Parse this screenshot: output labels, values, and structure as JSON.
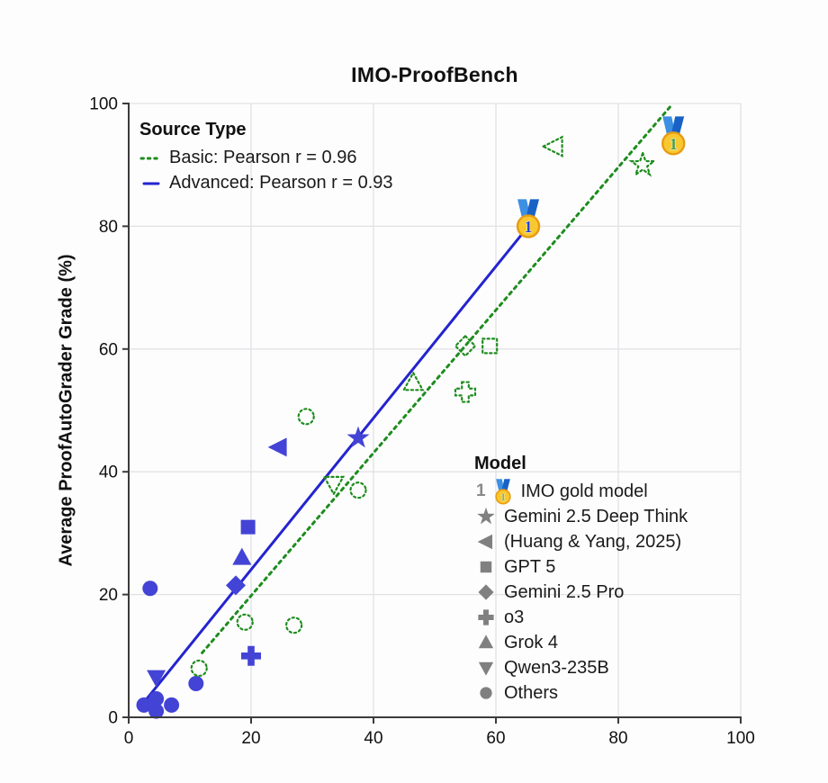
{
  "title": "IMO-ProofBench",
  "y_axis_label": "Average ProofAutoGrader Grade (%)",
  "colors": {
    "advanced": "#4343d6",
    "advanced_line": "#2424cf",
    "basic": "#1e8c1e",
    "legend_gray": "#808080",
    "grid": "#e2e2e6",
    "axis": "#3c3c3c",
    "text": "#111111",
    "medal_gold": "#f9c830",
    "medal_gold_border": "#e89b12",
    "medal_ribbon_light": "#3d8fe3",
    "medal_ribbon_dark": "#1862c6"
  },
  "source_type_legend": {
    "title": "Source Type",
    "items": [
      {
        "name": "Basic",
        "line_style": "dotted",
        "label": "Basic: Pearson r = 0.96"
      },
      {
        "name": "Advanced",
        "line_style": "solid",
        "label": "Advanced: Pearson r = 0.93"
      }
    ]
  },
  "model_legend": {
    "title": "Model",
    "items": [
      {
        "marker": "medal",
        "prefix": "1",
        "label": "IMO gold model"
      },
      {
        "marker": "star",
        "label": "Gemini 2.5 Deep Think"
      },
      {
        "marker": "triangle-left",
        "label": "(Huang & Yang, 2025)"
      },
      {
        "marker": "square",
        "label": "GPT 5"
      },
      {
        "marker": "diamond",
        "label": "Gemini 2.5 Pro"
      },
      {
        "marker": "plus",
        "label": "o3"
      },
      {
        "marker": "triangle-up",
        "label": "Grok 4"
      },
      {
        "marker": "triangle-down",
        "label": "Qwen3-235B"
      },
      {
        "marker": "circle",
        "label": "Others"
      }
    ]
  },
  "chart_data": {
    "type": "scatter",
    "title": "IMO-ProofBench",
    "xlabel": "",
    "ylabel": "Average ProofAutoGrader Grade (%)",
    "xlim": [
      0,
      100
    ],
    "ylim": [
      0,
      100
    ],
    "x_ticks": [
      0,
      20,
      40,
      60,
      80,
      100
    ],
    "y_ticks": [
      0,
      20,
      40,
      60,
      80,
      100
    ],
    "grid": true,
    "series": [
      {
        "name": "Advanced",
        "style": "solid-blue",
        "points": [
          {
            "model": "IMO gold model",
            "marker": "medal",
            "x": 65.3,
            "y": 80
          },
          {
            "model": "Gemini 2.5 Deep Think",
            "marker": "star",
            "x": 37.5,
            "y": 45.5
          },
          {
            "model": "(Huang & Yang, 2025)",
            "marker": "triangle-left",
            "x": 24.5,
            "y": 44
          },
          {
            "model": "GPT 5",
            "marker": "square",
            "x": 19.5,
            "y": 31
          },
          {
            "model": "Gemini 2.5 Pro",
            "marker": "diamond",
            "x": 17.5,
            "y": 21.5
          },
          {
            "model": "o3",
            "marker": "plus",
            "x": 20,
            "y": 10
          },
          {
            "model": "Grok 4",
            "marker": "triangle-up",
            "x": 18.5,
            "y": 26
          },
          {
            "model": "Qwen3-235B",
            "marker": "triangle-down",
            "x": 4.5,
            "y": 6.5
          },
          {
            "model": "Others",
            "marker": "circle",
            "x": 3.5,
            "y": 21
          },
          {
            "model": "Others",
            "marker": "circle",
            "x": 11,
            "y": 5.5
          },
          {
            "model": "Others",
            "marker": "circle",
            "x": 2.5,
            "y": 2
          },
          {
            "model": "Others",
            "marker": "circle",
            "x": 4.5,
            "y": 3
          },
          {
            "model": "Others",
            "marker": "circle",
            "x": 7,
            "y": 2
          },
          {
            "model": "Others",
            "marker": "circle",
            "x": 4.5,
            "y": 1
          }
        ]
      },
      {
        "name": "Basic",
        "style": "hollow-dotted-green",
        "points": [
          {
            "model": "IMO gold model",
            "marker": "medal",
            "x": 89,
            "y": 93.5
          },
          {
            "model": "Gemini 2.5 Deep Think",
            "marker": "star",
            "x": 84,
            "y": 90
          },
          {
            "model": "(Huang & Yang, 2025)",
            "marker": "triangle-left",
            "x": 69.5,
            "y": 93
          },
          {
            "model": "GPT 5",
            "marker": "square",
            "x": 59,
            "y": 60.5
          },
          {
            "model": "Gemini 2.5 Pro",
            "marker": "diamond",
            "x": 55,
            "y": 60.5
          },
          {
            "model": "o3",
            "marker": "plus",
            "x": 55,
            "y": 53
          },
          {
            "model": "Grok 4",
            "marker": "triangle-up",
            "x": 46.5,
            "y": 54.5
          },
          {
            "model": "Qwen3-235B",
            "marker": "triangle-down",
            "x": 33.5,
            "y": 38
          },
          {
            "model": "Others",
            "marker": "circle",
            "x": 37.5,
            "y": 37
          },
          {
            "model": "Others",
            "marker": "circle",
            "x": 29,
            "y": 49
          },
          {
            "model": "Others",
            "marker": "circle",
            "x": 27,
            "y": 15
          },
          {
            "model": "Others",
            "marker": "circle",
            "x": 19,
            "y": 15.5
          },
          {
            "model": "Others",
            "marker": "circle",
            "x": 11.5,
            "y": 8
          }
        ]
      }
    ],
    "fit_lines": [
      {
        "name": "Basic",
        "pearson_r": 0.96,
        "style": "dotted",
        "x1": 12,
        "y1": 10.5,
        "x2": 88.5,
        "y2": 99.5
      },
      {
        "name": "Advanced",
        "pearson_r": 0.93,
        "style": "solid",
        "x1": 2.3,
        "y1": 2.2,
        "x2": 65.3,
        "y2": 80
      }
    ],
    "legend_position": {
      "source_type": "upper left",
      "model": "lower right"
    }
  }
}
